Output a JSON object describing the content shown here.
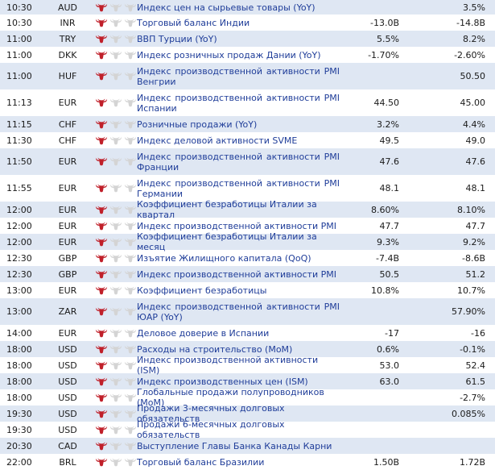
{
  "colors": {
    "alt_row": "#dfe7f3",
    "event_text": "#1f3d99",
    "bull_active": "#c0202a",
    "bull_inactive": "#d4d4d4"
  },
  "icons": {
    "importance": "bull-icon"
  },
  "rows": [
    {
      "time": "10:30",
      "currency": "AUD",
      "importance": 1,
      "event": "Индекс цен на сырьевые товары (YoY)",
      "actual": "",
      "previous": "3.5%"
    },
    {
      "time": "10:30",
      "currency": "INR",
      "importance": 1,
      "event": "Торговый баланс Индии",
      "actual": "-13.0B",
      "previous": "-14.8B"
    },
    {
      "time": "11:00",
      "currency": "TRY",
      "importance": 1,
      "event": "ВВП Турции (YoY)",
      "actual": "5.5%",
      "previous": "8.2%"
    },
    {
      "time": "11:00",
      "currency": "DKK",
      "importance": 1,
      "event": "Индекс розничных продаж Дании (YoY)",
      "actual": "-1.70%",
      "previous": "-2.60%"
    },
    {
      "time": "11:00",
      "currency": "HUF",
      "importance": 1,
      "event": "Индекс производственной активности PMI Венгрии",
      "actual": "",
      "previous": "50.50"
    },
    {
      "time": "11:13",
      "currency": "EUR",
      "importance": 1,
      "event": "Индекс производственной активности PMI Испании",
      "actual": "44.50",
      "previous": "45.00"
    },
    {
      "time": "11:15",
      "currency": "CHF",
      "importance": 1,
      "event": "Розничные продажи (YoY)",
      "actual": "3.2%",
      "previous": "4.4%"
    },
    {
      "time": "11:30",
      "currency": "CHF",
      "importance": 1,
      "event": "Индекс деловой активности SVME",
      "actual": "49.5",
      "previous": "49.0"
    },
    {
      "time": "11:50",
      "currency": "EUR",
      "importance": 1,
      "event": "Индекс производственной активности PMI Франции",
      "actual": "47.6",
      "previous": "47.6"
    },
    {
      "time": "11:55",
      "currency": "EUR",
      "importance": 1,
      "event": "Индекс производственной активности PMI Германии",
      "actual": "48.1",
      "previous": "48.1"
    },
    {
      "time": "12:00",
      "currency": "EUR",
      "importance": 1,
      "event": "Коэффициент безработицы Италии за квартал",
      "actual": "8.60%",
      "previous": "8.10%"
    },
    {
      "time": "12:00",
      "currency": "EUR",
      "importance": 1,
      "event": "Индекс производственной активности PMI",
      "actual": "47.7",
      "previous": "47.7"
    },
    {
      "time": "12:00",
      "currency": "EUR",
      "importance": 1,
      "event": "Коэффициент безработицы Италии за месяц",
      "actual": "9.3%",
      "previous": "9.2%"
    },
    {
      "time": "12:30",
      "currency": "GBP",
      "importance": 1,
      "event": "Изъятие Жилищного капитала (QoQ)",
      "actual": "-7.4B",
      "previous": "-8.6B"
    },
    {
      "time": "12:30",
      "currency": "GBP",
      "importance": 1,
      "event": "Индекс производственной активности PMI",
      "actual": "50.5",
      "previous": "51.2"
    },
    {
      "time": "13:00",
      "currency": "EUR",
      "importance": 1,
      "event": "Коэффициент безработицы",
      "actual": "10.8%",
      "previous": "10.7%"
    },
    {
      "time": "13:00",
      "currency": "ZAR",
      "importance": 1,
      "event": "Индекс производственной активности PMI ЮАР (YoY)",
      "actual": "",
      "previous": "57.90%"
    },
    {
      "time": "14:00",
      "currency": "EUR",
      "importance": 1,
      "event": "Деловое доверие в Испании",
      "actual": "-17",
      "previous": "-16"
    },
    {
      "time": "18:00",
      "currency": "USD",
      "importance": 1,
      "event": "Расходы на строительство (MoM)",
      "actual": "0.6%",
      "previous": "-0.1%"
    },
    {
      "time": "18:00",
      "currency": "USD",
      "importance": 1,
      "event": "Индекс производственной активности (ISM)",
      "actual": "53.0",
      "previous": "52.4"
    },
    {
      "time": "18:00",
      "currency": "USD",
      "importance": 1,
      "event": "Индекс производственных цен (ISM)",
      "actual": "63.0",
      "previous": "61.5"
    },
    {
      "time": "18:00",
      "currency": "USD",
      "importance": 1,
      "event": "Глобальные продажи полупроводников (MoM)",
      "actual": "",
      "previous": "-2.7%"
    },
    {
      "time": "19:30",
      "currency": "USD",
      "importance": 1,
      "event": "Продажи 3-месячных долговых обязательств",
      "actual": "",
      "previous": "0.085%"
    },
    {
      "time": "19:30",
      "currency": "USD",
      "importance": 1,
      "event": "Продажи 6-месячных долговых обязательств",
      "actual": "",
      "previous": ""
    },
    {
      "time": "20:30",
      "currency": "CAD",
      "importance": 1,
      "event": "Выступление Главы Банка Канады Карни",
      "actual": "",
      "previous": ""
    },
    {
      "time": "22:00",
      "currency": "BRL",
      "importance": 1,
      "event": "Торговый баланс Бразилии",
      "actual": "1.50B",
      "previous": "1.72B"
    }
  ]
}
